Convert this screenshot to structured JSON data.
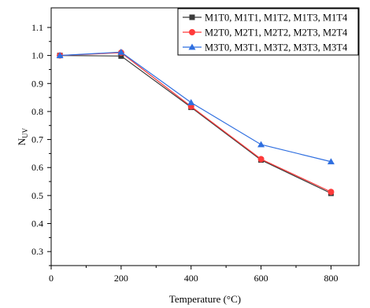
{
  "chart_data": {
    "type": "line",
    "xlabel": "Temperature (°C)",
    "ylabel_main": "N",
    "ylabel_sub": "UV",
    "xlim": [
      0,
      880
    ],
    "ylim": [
      0.25,
      1.17
    ],
    "xticks": [
      0,
      200,
      400,
      600,
      800
    ],
    "yticks": [
      0.3,
      0.4,
      0.5,
      0.6,
      0.7,
      0.8,
      0.9,
      1.0,
      1.1
    ],
    "legend_position": "top-right",
    "grid": false,
    "x": [
      25,
      200,
      400,
      600,
      800
    ],
    "series": [
      {
        "name": "M1T0, M1T1, M1T2, M1T3, M1T4",
        "color": "#3a3a3a",
        "marker": "square",
        "values": [
          1.0,
          0.998,
          0.815,
          0.627,
          0.508
        ]
      },
      {
        "name": "M2T0, M2T1, M2T2, M2T3, M2T4",
        "color": "#ff3a3a",
        "marker": "circle",
        "values": [
          1.0,
          1.01,
          0.818,
          0.63,
          0.513
        ]
      },
      {
        "name": "M3T0, M3T1, M3T2, M3T3, M3T4",
        "color": "#2f6fe0",
        "marker": "triangle",
        "values": [
          1.0,
          1.012,
          0.832,
          0.682,
          0.621
        ]
      }
    ]
  }
}
